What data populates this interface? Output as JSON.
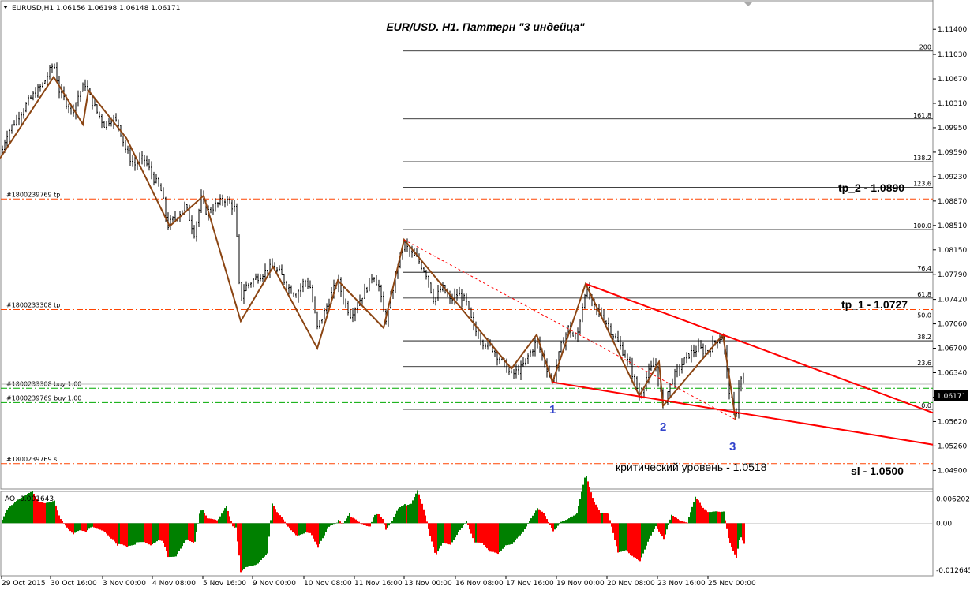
{
  "header": {
    "symbol_info": "EURUSD,H1  1.06156 1.06198 1.06148 1.06171"
  },
  "chart_data": [
    {
      "type": "candlestick",
      "title": "EUR/USD. H1. Паттерн \"3 индейца\"",
      "ylim": [
        1.048,
        1.116
      ],
      "y_ticks": [
        "1.11400",
        "1.11030",
        "1.10670",
        "1.10310",
        "1.09950",
        "1.09590",
        "1.09230",
        "1.08870",
        "1.08510",
        "1.08150",
        "1.07790",
        "1.07420",
        "1.07060",
        "1.06700",
        "1.06340",
        "1.05980",
        "1.05620",
        "1.05260",
        "1.04900"
      ],
      "current_price": "1.06171",
      "x_ticks": [
        "29 Oct 2015",
        "30 Oct 16:00",
        "3 Nov 00:00",
        "4 Nov 08:00",
        "5 Nov 16:00",
        "9 Nov 00:00",
        "10 Nov 08:00",
        "11 Nov 16:00",
        "13 Nov 00:00",
        "16 Nov 08:00",
        "17 Nov 16:00",
        "19 Nov 00:00",
        "20 Nov 08:00",
        "23 Nov 16:00",
        "25 Nov 00:00"
      ],
      "price_path": [
        [
          0,
          1.095
        ],
        [
          8,
          1.0985
        ],
        [
          22,
          1.101
        ],
        [
          40,
          1.104
        ],
        [
          55,
          1.106
        ],
        [
          68,
          1.109
        ],
        [
          75,
          1.105
        ],
        [
          85,
          1.103
        ],
        [
          92,
          1.102
        ],
        [
          100,
          1.1045
        ],
        [
          108,
          1.106
        ],
        [
          114,
          1.104
        ],
        [
          122,
          1.102
        ],
        [
          132,
          1.1
        ],
        [
          142,
          1.101
        ],
        [
          150,
          1.1
        ],
        [
          160,
          1.096
        ],
        [
          170,
          1.094
        ],
        [
          182,
          1.095
        ],
        [
          195,
          1.092
        ],
        [
          205,
          1.09
        ],
        [
          212,
          1.085
        ],
        [
          220,
          1.086
        ],
        [
          235,
          1.088
        ],
        [
          246,
          1.084
        ],
        [
          255,
          1.089
        ],
        [
          262,
          1.087
        ],
        [
          272,
          1.088
        ],
        [
          285,
          1.089
        ],
        [
          298,
          1.0875
        ],
        [
          304,
          1.074
        ],
        [
          310,
          1.076
        ],
        [
          320,
          1.077
        ],
        [
          332,
          1.078
        ],
        [
          345,
          1.079
        ],
        [
          355,
          1.078
        ],
        [
          365,
          1.076
        ],
        [
          375,
          1.075
        ],
        [
          386,
          1.077
        ],
        [
          393,
          1.076
        ],
        [
          402,
          1.07
        ],
        [
          410,
          1.072
        ],
        [
          420,
          1.075
        ],
        [
          428,
          1.077
        ],
        [
          436,
          1.074
        ],
        [
          444,
          1.072
        ],
        [
          455,
          1.074
        ],
        [
          465,
          1.076
        ],
        [
          473,
          1.078
        ],
        [
          480,
          1.076
        ],
        [
          488,
          1.071
        ],
        [
          495,
          1.074
        ],
        [
          503,
          1.079
        ],
        [
          512,
          1.0825
        ],
        [
          520,
          1.081
        ],
        [
          530,
          1.08
        ],
        [
          540,
          1.078
        ],
        [
          550,
          1.074
        ],
        [
          560,
          1.076
        ],
        [
          570,
          1.074
        ],
        [
          580,
          1.075
        ],
        [
          590,
          1.074
        ],
        [
          600,
          1.07
        ],
        [
          612,
          1.068
        ],
        [
          624,
          1.067
        ],
        [
          636,
          1.065
        ],
        [
          648,
          1.063
        ],
        [
          660,
          1.064
        ],
        [
          670,
          1.066
        ],
        [
          680,
          1.068
        ],
        [
          690,
          1.065
        ],
        [
          700,
          1.062
        ],
        [
          710,
          1.067
        ],
        [
          720,
          1.07
        ],
        [
          730,
          1.068
        ],
        [
          742,
          1.076
        ],
        [
          752,
          1.073
        ],
        [
          762,
          1.072
        ],
        [
          772,
          1.07
        ],
        [
          782,
          1.068
        ],
        [
          792,
          1.066
        ],
        [
          802,
          1.063
        ],
        [
          810,
          1.06
        ],
        [
          820,
          1.063
        ],
        [
          830,
          1.065
        ],
        [
          840,
          1.0585
        ],
        [
          850,
          1.062
        ],
        [
          860,
          1.064
        ],
        [
          872,
          1.066
        ],
        [
          884,
          1.067
        ],
        [
          896,
          1.0665
        ],
        [
          906,
          1.068
        ],
        [
          916,
          1.069
        ],
        [
          922,
          1.062
        ],
        [
          928,
          1.0585
        ],
        [
          932,
          1.0565
        ],
        [
          937,
          1.063
        ],
        [
          942,
          1.0617
        ]
      ],
      "zigzag": [
        [
          0,
          1.095
        ],
        [
          68,
          1.107
        ],
        [
          105,
          1.1
        ],
        [
          112,
          1.105
        ],
        [
          160,
          1.098
        ],
        [
          215,
          1.085
        ],
        [
          258,
          1.0895
        ],
        [
          305,
          1.071
        ],
        [
          346,
          1.079
        ],
        [
          402,
          1.067
        ],
        [
          428,
          1.077
        ],
        [
          486,
          1.07
        ],
        [
          512,
          1.083
        ],
        [
          648,
          1.064
        ],
        [
          680,
          1.069
        ],
        [
          700,
          1.062
        ],
        [
          742,
          1.0765
        ],
        [
          810,
          1.06
        ],
        [
          835,
          1.065
        ],
        [
          840,
          1.0585
        ],
        [
          916,
          1.069
        ],
        [
          932,
          1.0565
        ]
      ],
      "fibo_levels": [
        {
          "label": "200",
          "price": 1.1108
        },
        {
          "label": "161.8",
          "price": 1.1008
        },
        {
          "label": "138.2",
          "price": 1.0945
        },
        {
          "label": "123.6",
          "price": 1.0907
        },
        {
          "label": "100.0",
          "price": 1.0845
        },
        {
          "label": "76.4",
          "price": 1.0782
        },
        {
          "label": "61.8",
          "price": 1.0744
        },
        {
          "label": "50.0",
          "price": 1.0713
        },
        {
          "label": "38.2",
          "price": 1.0681
        },
        {
          "label": "23.6",
          "price": 1.0643
        },
        {
          "label": "0.0",
          "price": 1.058
        }
      ],
      "order_lines": [
        {
          "label": "#1800239769 tp",
          "price": 1.089,
          "color": "#ff4400",
          "style": "dashdot"
        },
        {
          "label": "#1800233308 tp",
          "price": 1.0727,
          "color": "#ff4400",
          "style": "dashdot"
        },
        {
          "label": "#1800233308 buy 1.00",
          "price": 1.0611,
          "color": "#00aa00",
          "style": "dashdot"
        },
        {
          "label": "#1800239769 buy 1.00",
          "price": 1.059,
          "color": "#00aa00",
          "style": "dashdot"
        },
        {
          "label": "#1800239769 sl",
          "price": 1.05,
          "color": "#ff4400",
          "style": "dashdot"
        }
      ],
      "annotations": [
        {
          "text": "tp_2 - 1.0890"
        },
        {
          "text": "tp_1 - 1.0727"
        },
        {
          "text": "критический уровень - 1.0518"
        },
        {
          "text": "sl - 1.0500"
        }
      ],
      "points": [
        "1",
        "2",
        "3"
      ]
    },
    {
      "type": "bar",
      "indicator": "AO -0.001643",
      "y_ticks": [
        "0.006202",
        "0.00",
        "-0.012645"
      ],
      "ylim": [
        -0.013,
        0.0065
      ]
    }
  ],
  "colors": {
    "candle": "#000000",
    "zigzag": "#8b4513",
    "trend": "#ff0000",
    "fibo": "#000000",
    "ao_up": "#008000",
    "ao_down": "#ff0000"
  }
}
